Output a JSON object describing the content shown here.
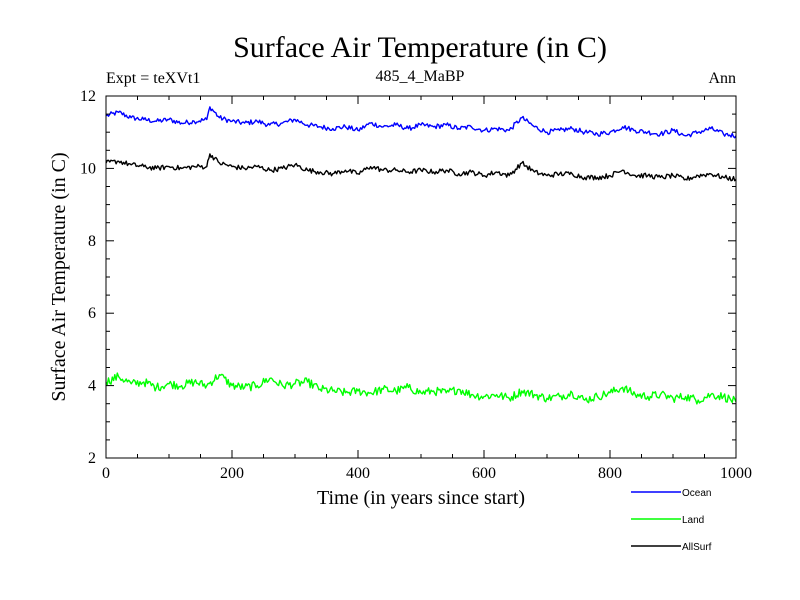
{
  "chart_data": {
    "type": "line",
    "title": "Surface Air Temperature (in C)",
    "subtitle": "485_4_MaBP",
    "annotation_left": "Expt = teXVt1",
    "annotation_right": "Ann",
    "xlabel": "Time (in years since start)",
    "ylabel": "Surface Air Temperature (in C)",
    "xlim": [
      0,
      1000
    ],
    "ylim": [
      2,
      12
    ],
    "xticks": [
      0,
      200,
      400,
      600,
      800,
      1000
    ],
    "yticks": [
      2,
      4,
      6,
      8,
      10,
      12
    ],
    "xtick_labels": [
      "0",
      "200",
      "400",
      "600",
      "800",
      "1000"
    ],
    "ytick_labels": [
      "2",
      "4",
      "6",
      "8",
      "10",
      "12"
    ],
    "grid": false,
    "legend_position": "bottom-right outside",
    "series": [
      {
        "name": "Ocean",
        "color": "#0000ff",
        "x": [
          0,
          20,
          40,
          60,
          80,
          100,
          120,
          140,
          160,
          165,
          180,
          200,
          220,
          240,
          260,
          280,
          300,
          320,
          340,
          360,
          380,
          400,
          420,
          440,
          460,
          480,
          500,
          520,
          540,
          560,
          580,
          600,
          620,
          640,
          660,
          680,
          700,
          720,
          740,
          760,
          780,
          800,
          820,
          840,
          860,
          880,
          900,
          920,
          940,
          960,
          980,
          1000
        ],
        "values": [
          11.45,
          11.55,
          11.4,
          11.35,
          11.3,
          11.35,
          11.25,
          11.3,
          11.35,
          11.7,
          11.4,
          11.3,
          11.25,
          11.3,
          11.2,
          11.25,
          11.35,
          11.2,
          11.15,
          11.1,
          11.15,
          11.05,
          11.25,
          11.15,
          11.2,
          11.1,
          11.2,
          11.15,
          11.2,
          11.1,
          11.15,
          11.05,
          11.1,
          11.05,
          11.4,
          11.15,
          11.0,
          11.05,
          11.1,
          11.0,
          10.95,
          11.0,
          11.15,
          11.05,
          11.0,
          10.95,
          11.05,
          10.9,
          11.0,
          11.1,
          10.95,
          10.9
        ]
      },
      {
        "name": "Land",
        "color": "#00ff00",
        "x": [
          0,
          20,
          40,
          60,
          80,
          100,
          120,
          140,
          160,
          180,
          200,
          220,
          240,
          260,
          280,
          300,
          320,
          340,
          360,
          380,
          400,
          420,
          440,
          460,
          480,
          500,
          520,
          540,
          560,
          580,
          600,
          620,
          640,
          660,
          680,
          700,
          720,
          740,
          760,
          780,
          800,
          820,
          840,
          860,
          880,
          900,
          920,
          940,
          960,
          980,
          1000
        ],
        "values": [
          4.1,
          4.25,
          4.05,
          4.1,
          3.95,
          4.05,
          4.0,
          4.1,
          4.0,
          4.3,
          4.0,
          3.95,
          4.0,
          4.2,
          4.0,
          4.05,
          4.1,
          3.9,
          3.85,
          3.8,
          3.85,
          3.8,
          3.9,
          3.85,
          3.95,
          3.8,
          3.85,
          3.8,
          3.9,
          3.75,
          3.7,
          3.75,
          3.65,
          3.85,
          3.75,
          3.65,
          3.7,
          3.8,
          3.6,
          3.7,
          3.8,
          3.95,
          3.75,
          3.7,
          3.75,
          3.65,
          3.7,
          3.6,
          3.75,
          3.7,
          3.55
        ]
      },
      {
        "name": "AllSurf",
        "color": "#000000",
        "x": [
          0,
          20,
          40,
          60,
          80,
          100,
          120,
          140,
          160,
          165,
          180,
          200,
          220,
          240,
          260,
          280,
          300,
          320,
          340,
          360,
          380,
          400,
          420,
          440,
          460,
          480,
          500,
          520,
          540,
          560,
          580,
          600,
          620,
          640,
          660,
          680,
          700,
          720,
          740,
          760,
          780,
          800,
          820,
          840,
          860,
          880,
          900,
          920,
          940,
          960,
          980,
          1000
        ],
        "values": [
          10.15,
          10.2,
          10.1,
          10.05,
          10.0,
          10.05,
          10.0,
          10.05,
          10.05,
          10.4,
          10.15,
          10.05,
          10.0,
          10.05,
          9.95,
          10.0,
          10.1,
          9.95,
          9.9,
          9.85,
          9.95,
          9.85,
          10.05,
          9.95,
          9.95,
          9.9,
          9.95,
          9.9,
          9.95,
          9.85,
          9.9,
          9.8,
          9.9,
          9.8,
          10.15,
          9.9,
          9.8,
          9.85,
          9.85,
          9.75,
          9.75,
          9.8,
          9.95,
          9.8,
          9.8,
          9.75,
          9.8,
          9.7,
          9.8,
          9.85,
          9.75,
          9.7
        ]
      }
    ]
  }
}
